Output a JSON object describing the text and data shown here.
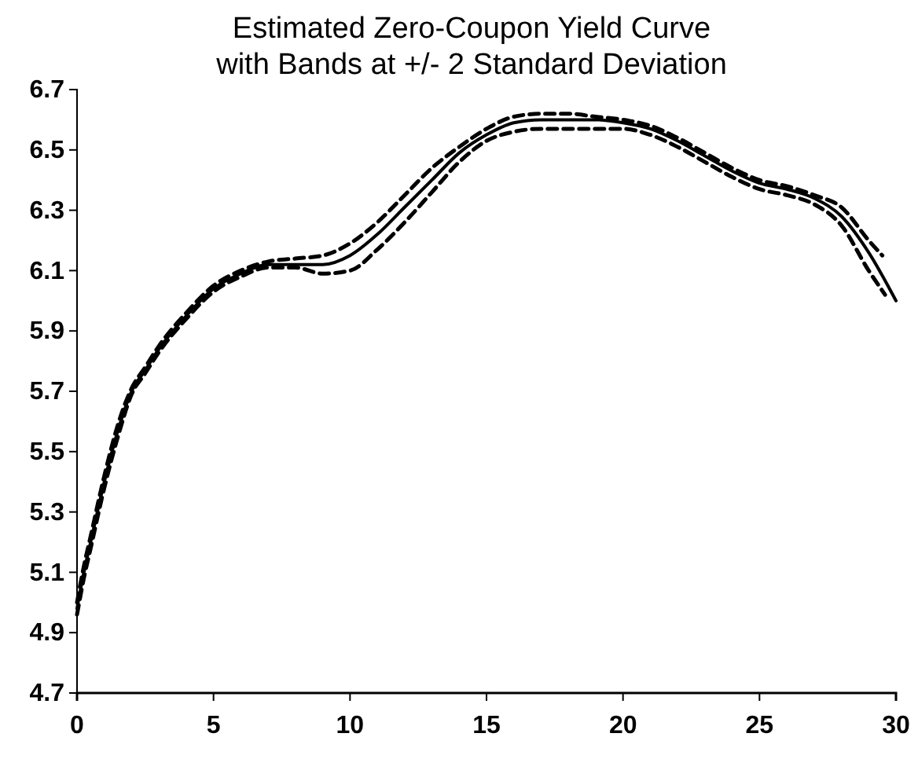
{
  "chart_data": {
    "type": "line",
    "title": "Estimated Zero-Coupon Yield Curve",
    "subtitle": "with Bands at +/- 2 Standard Deviation",
    "xlim": [
      0,
      30
    ],
    "xticks": [
      0,
      5,
      10,
      15,
      20,
      25,
      30
    ],
    "ylim": [
      4.7,
      6.7
    ],
    "yticks": [
      4.7,
      4.9,
      5.1,
      5.3,
      5.5,
      5.7,
      5.9,
      6.1,
      6.3,
      6.5,
      6.7
    ],
    "grid": false,
    "series": [
      {
        "color": "#000000",
        "line_style": "solid",
        "x": [
          0,
          0.25,
          0.5,
          1,
          1.5,
          2,
          2.5,
          3,
          4,
          5,
          6,
          7,
          8,
          9,
          10,
          11,
          12,
          13,
          14,
          15,
          16,
          17,
          18,
          19,
          20,
          21,
          22,
          23,
          24,
          25,
          26,
          27,
          28,
          29,
          30
        ],
        "values": [
          4.98,
          5.1,
          5.2,
          5.4,
          5.57,
          5.7,
          5.77,
          5.84,
          5.95,
          6.04,
          6.09,
          6.12,
          6.12,
          6.12,
          6.15,
          6.22,
          6.31,
          6.4,
          6.49,
          6.55,
          6.59,
          6.6,
          6.6,
          6.6,
          6.59,
          6.57,
          6.53,
          6.48,
          6.43,
          6.39,
          6.37,
          6.34,
          6.28,
          6.16,
          6.0
        ]
      },
      {
        "color": "#000000",
        "line_style": "dashed",
        "x": [
          0,
          0.25,
          0.5,
          1,
          1.5,
          2,
          2.5,
          3,
          4,
          5,
          6,
          7,
          8,
          9,
          10,
          11,
          12,
          13,
          14,
          15,
          16,
          17,
          18,
          19,
          20,
          21,
          22,
          23,
          24,
          25,
          26,
          27,
          28,
          29,
          29.5
        ],
        "values": [
          5.0,
          5.12,
          5.22,
          5.42,
          5.59,
          5.71,
          5.78,
          5.85,
          5.96,
          6.05,
          6.1,
          6.13,
          6.14,
          6.15,
          6.19,
          6.26,
          6.35,
          6.44,
          6.51,
          6.57,
          6.61,
          6.62,
          6.62,
          6.61,
          6.6,
          6.58,
          6.54,
          6.49,
          6.44,
          6.4,
          6.38,
          6.35,
          6.31,
          6.2,
          6.15
        ]
      },
      {
        "color": "#000000",
        "line_style": "dashed",
        "x": [
          0,
          0.25,
          0.5,
          1,
          1.5,
          2,
          2.5,
          3,
          4,
          5,
          6,
          7,
          8,
          9,
          10,
          11,
          12,
          13,
          14,
          15,
          16,
          17,
          18,
          19,
          20,
          21,
          22,
          23,
          24,
          25,
          26,
          27,
          28,
          29,
          29.6
        ],
        "values": [
          4.96,
          5.08,
          5.18,
          5.38,
          5.55,
          5.69,
          5.76,
          5.83,
          5.94,
          6.03,
          6.08,
          6.11,
          6.11,
          6.09,
          6.1,
          6.17,
          6.26,
          6.36,
          6.46,
          6.53,
          6.56,
          6.57,
          6.57,
          6.57,
          6.57,
          6.55,
          6.51,
          6.46,
          6.41,
          6.37,
          6.35,
          6.32,
          6.25,
          6.1,
          6.02
        ]
      }
    ]
  }
}
